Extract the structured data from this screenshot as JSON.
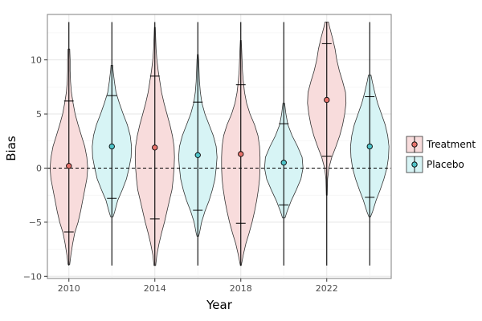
{
  "chart_data": {
    "type": "violin",
    "xlabel": "Year",
    "ylabel": "Bias",
    "xlim": [
      2009,
      2025
    ],
    "ylim": [
      -10.2,
      14.2
    ],
    "xticks": [
      2010,
      2014,
      2018,
      2022
    ],
    "yticks": [
      -10,
      -5,
      0,
      5,
      10
    ],
    "grid": true,
    "reference_line": {
      "y": 0,
      "style": "dashed"
    },
    "legend": {
      "placement": "right",
      "entries": [
        "Treatment",
        "Placebo"
      ]
    },
    "series_colors": {
      "Treatment": "#f8dcdc",
      "Placebo": "#d7f4f5"
    },
    "marker_colors": {
      "Treatment": "#e8736c",
      "Placebo": "#4ec3c8"
    },
    "violins": [
      {
        "group": "Treatment",
        "x": 2010,
        "mean": 0.2,
        "lower": -5.9,
        "upper": 6.2,
        "min": -9.0,
        "max": 13.5,
        "density": [
          [
            -8.9,
            0.02
          ],
          [
            -8,
            0.05
          ],
          [
            -7,
            0.09
          ],
          [
            -6,
            0.14
          ],
          [
            -5,
            0.22
          ],
          [
            -4,
            0.28
          ],
          [
            -3,
            0.33
          ],
          [
            -2,
            0.38
          ],
          [
            -1,
            0.43
          ],
          [
            0,
            0.45
          ],
          [
            1,
            0.43
          ],
          [
            2,
            0.38
          ],
          [
            3,
            0.3
          ],
          [
            4,
            0.22
          ],
          [
            5,
            0.15
          ],
          [
            6,
            0.1
          ],
          [
            7,
            0.06
          ],
          [
            8,
            0.04
          ],
          [
            9,
            0.03
          ],
          [
            10,
            0.03
          ],
          [
            11,
            0.02
          ]
        ]
      },
      {
        "group": "Placebo",
        "x": 2012,
        "mean": 2.0,
        "lower": -2.8,
        "upper": 6.7,
        "min": -9.0,
        "max": 13.5,
        "density": [
          [
            -4.5,
            0.03
          ],
          [
            -4,
            0.07
          ],
          [
            -3,
            0.14
          ],
          [
            -2,
            0.25
          ],
          [
            -1,
            0.35
          ],
          [
            0,
            0.41
          ],
          [
            1,
            0.46
          ],
          [
            2,
            0.47
          ],
          [
            3,
            0.44
          ],
          [
            4,
            0.37
          ],
          [
            5,
            0.27
          ],
          [
            6,
            0.18
          ],
          [
            7,
            0.1
          ],
          [
            8,
            0.06
          ],
          [
            9,
            0.03
          ],
          [
            9.5,
            0.02
          ]
        ]
      },
      {
        "group": "Treatment",
        "x": 2014,
        "mean": 1.9,
        "lower": -4.7,
        "upper": 8.5,
        "min": -9.0,
        "max": 13.5,
        "density": [
          [
            -9.0,
            0.02
          ],
          [
            -8,
            0.05
          ],
          [
            -7,
            0.1
          ],
          [
            -6,
            0.16
          ],
          [
            -5,
            0.23
          ],
          [
            -4,
            0.29
          ],
          [
            -3,
            0.35
          ],
          [
            -2,
            0.41
          ],
          [
            -1,
            0.44
          ],
          [
            0,
            0.46
          ],
          [
            1,
            0.47
          ],
          [
            2,
            0.46
          ],
          [
            3,
            0.42
          ],
          [
            4,
            0.36
          ],
          [
            5,
            0.29
          ],
          [
            6,
            0.22
          ],
          [
            7,
            0.16
          ],
          [
            8,
            0.12
          ],
          [
            9,
            0.08
          ],
          [
            10,
            0.05
          ],
          [
            11,
            0.03
          ],
          [
            12,
            0.02
          ],
          [
            13,
            0.01
          ]
        ]
      },
      {
        "group": "Placebo",
        "x": 2016,
        "mean": 1.2,
        "lower": -3.9,
        "upper": 6.1,
        "min": -9.0,
        "max": 13.5,
        "density": [
          [
            -6.3,
            0.02
          ],
          [
            -6,
            0.04
          ],
          [
            -5,
            0.09
          ],
          [
            -4,
            0.17
          ],
          [
            -3,
            0.27
          ],
          [
            -2,
            0.35
          ],
          [
            -1,
            0.41
          ],
          [
            0,
            0.44
          ],
          [
            1,
            0.46
          ],
          [
            2,
            0.44
          ],
          [
            3,
            0.37
          ],
          [
            4,
            0.27
          ],
          [
            5,
            0.17
          ],
          [
            6,
            0.1
          ],
          [
            7,
            0.06
          ],
          [
            8,
            0.04
          ],
          [
            9,
            0.03
          ],
          [
            10,
            0.02
          ],
          [
            10.5,
            0.01
          ]
        ]
      },
      {
        "group": "Treatment",
        "x": 2018,
        "mean": 1.3,
        "lower": -5.1,
        "upper": 7.7,
        "min": -9.0,
        "max": 13.5,
        "density": [
          [
            -9.0,
            0.01
          ],
          [
            -8,
            0.06
          ],
          [
            -7,
            0.12
          ],
          [
            -6,
            0.2
          ],
          [
            -5,
            0.27
          ],
          [
            -4,
            0.33
          ],
          [
            -3,
            0.38
          ],
          [
            -2,
            0.42
          ],
          [
            -1,
            0.45
          ],
          [
            0,
            0.46
          ],
          [
            1,
            0.46
          ],
          [
            2,
            0.45
          ],
          [
            3,
            0.41
          ],
          [
            4,
            0.33
          ],
          [
            5,
            0.22
          ],
          [
            6,
            0.14
          ],
          [
            7,
            0.09
          ],
          [
            8,
            0.06
          ],
          [
            9,
            0.04
          ],
          [
            10,
            0.03
          ],
          [
            11,
            0.02
          ],
          [
            11.8,
            0.01
          ]
        ]
      },
      {
        "group": "Placebo",
        "x": 2020,
        "mean": 0.5,
        "lower": -3.4,
        "upper": 4.1,
        "min": -9.0,
        "max": 13.5,
        "density": [
          [
            -4.6,
            0.03
          ],
          [
            -4,
            0.08
          ],
          [
            -3,
            0.18
          ],
          [
            -2,
            0.3
          ],
          [
            -1,
            0.41
          ],
          [
            0,
            0.46
          ],
          [
            1,
            0.44
          ],
          [
            2,
            0.33
          ],
          [
            3,
            0.2
          ],
          [
            4,
            0.1
          ],
          [
            5,
            0.05
          ],
          [
            6,
            0.02
          ]
        ]
      },
      {
        "group": "Treatment",
        "x": 2022,
        "mean": 6.3,
        "lower": 1.1,
        "upper": 11.5,
        "min": -9.0,
        "max": 13.5,
        "density": [
          [
            -2.5,
            0.01
          ],
          [
            -1,
            0.02
          ],
          [
            0,
            0.05
          ],
          [
            1,
            0.12
          ],
          [
            2,
            0.22
          ],
          [
            3,
            0.31
          ],
          [
            4,
            0.38
          ],
          [
            5,
            0.43
          ],
          [
            6,
            0.46
          ],
          [
            7,
            0.45
          ],
          [
            8,
            0.38
          ],
          [
            9,
            0.3
          ],
          [
            10,
            0.24
          ],
          [
            11,
            0.2
          ],
          [
            12,
            0.14
          ],
          [
            13,
            0.07
          ],
          [
            13.5,
            0.04
          ]
        ]
      },
      {
        "group": "Placebo",
        "x": 2024,
        "mean": 2.0,
        "lower": -2.7,
        "upper": 6.6,
        "min": -9.0,
        "max": 13.5,
        "density": [
          [
            -4.5,
            0.02
          ],
          [
            -4,
            0.07
          ],
          [
            -3,
            0.15
          ],
          [
            -2,
            0.25
          ],
          [
            -1,
            0.34
          ],
          [
            0,
            0.41
          ],
          [
            1,
            0.45
          ],
          [
            2,
            0.46
          ],
          [
            3,
            0.43
          ],
          [
            4,
            0.37
          ],
          [
            5,
            0.28
          ],
          [
            6,
            0.19
          ],
          [
            7,
            0.12
          ],
          [
            8,
            0.06
          ],
          [
            8.6,
            0.03
          ]
        ]
      }
    ]
  }
}
